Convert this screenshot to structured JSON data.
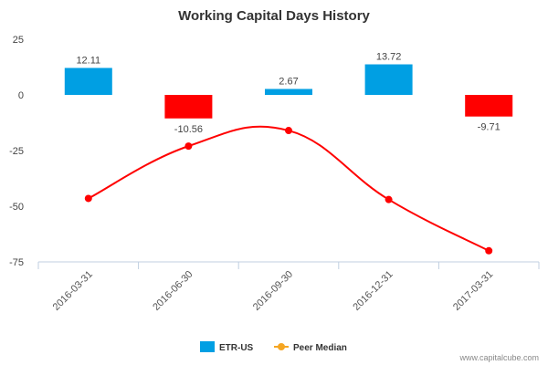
{
  "chart_data": {
    "type": "bar",
    "title": "Working Capital Days History",
    "categories": [
      "2016-03-31",
      "2016-06-30",
      "2016-09-30",
      "2016-12-31",
      "2017-03-31"
    ],
    "ylim": [
      -75,
      25
    ],
    "yticks": [
      25,
      0,
      -25,
      -50,
      -75
    ],
    "series": [
      {
        "name": "ETR-US",
        "kind": "bar",
        "values": [
          12.11,
          -10.56,
          2.67,
          13.72,
          -9.71
        ],
        "labels": [
          "12.11",
          "-10.56",
          "2.67",
          "13.72",
          "-9.71"
        ],
        "positive_color": "#009FE3",
        "negative_color": "#FF0000"
      },
      {
        "name": "Peer Median",
        "kind": "line",
        "values": [
          -46.5,
          -23,
          -16,
          -47,
          -70
        ],
        "color": "#FF0000",
        "legend_color": "#F5A623"
      }
    ],
    "legend_position": "bottom-center",
    "grid": false
  },
  "credit": "www.capitalcube.com"
}
